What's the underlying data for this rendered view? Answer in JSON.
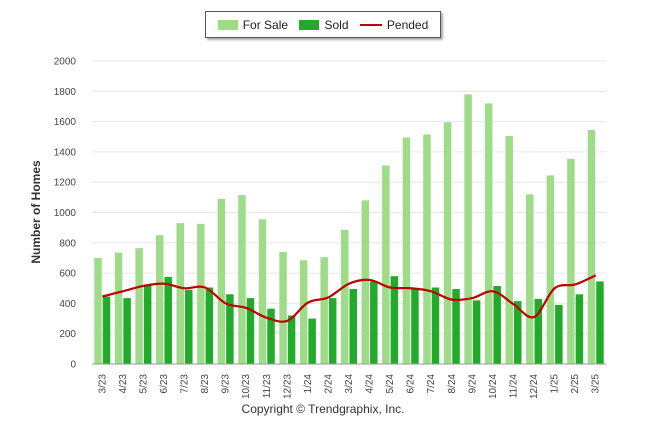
{
  "chart_data": {
    "type": "bar",
    "ylabel": "Number of Homes",
    "ylim": [
      0,
      2000
    ],
    "yticks": [
      0,
      200,
      400,
      600,
      800,
      1000,
      1200,
      1400,
      1600,
      1800,
      2000
    ],
    "grid": true,
    "legend_position": "top-center",
    "categories": [
      "3/23",
      "4/23",
      "5/23",
      "6/23",
      "7/23",
      "8/23",
      "9/23",
      "10/23",
      "11/23",
      "12/23",
      "1/24",
      "2/24",
      "3/24",
      "4/24",
      "5/24",
      "6/24",
      "7/24",
      "8/24",
      "9/24",
      "10/24",
      "11/24",
      "12/24",
      "1/25",
      "2/25",
      "3/25"
    ],
    "series": [
      {
        "name": "For Sale",
        "type": "bar",
        "color": "#9edc8a",
        "values": [
          700,
          735,
          765,
          850,
          930,
          925,
          1090,
          1115,
          955,
          740,
          685,
          705,
          885,
          1080,
          1310,
          1495,
          1515,
          1595,
          1780,
          1720,
          1505,
          1120,
          1245,
          1355,
          1545
        ]
      },
      {
        "name": "Sold",
        "type": "bar",
        "color": "#22aa2a",
        "values": [
          445,
          435,
          525,
          575,
          490,
          505,
          460,
          435,
          365,
          320,
          300,
          435,
          495,
          545,
          580,
          500,
          505,
          495,
          420,
          515,
          415,
          430,
          390,
          460,
          545
        ]
      },
      {
        "name": "Pended",
        "type": "line",
        "color": "#c00000",
        "values": [
          445,
          480,
          515,
          530,
          500,
          505,
          400,
          370,
          305,
          285,
          405,
          440,
          530,
          555,
          505,
          500,
          480,
          425,
          435,
          480,
          395,
          310,
          500,
          525,
          585
        ]
      }
    ]
  },
  "legend": {
    "for_sale": "For Sale",
    "sold": "Sold",
    "pended": "Pended"
  },
  "footer": "Copyright © Trendgraphix, Inc."
}
